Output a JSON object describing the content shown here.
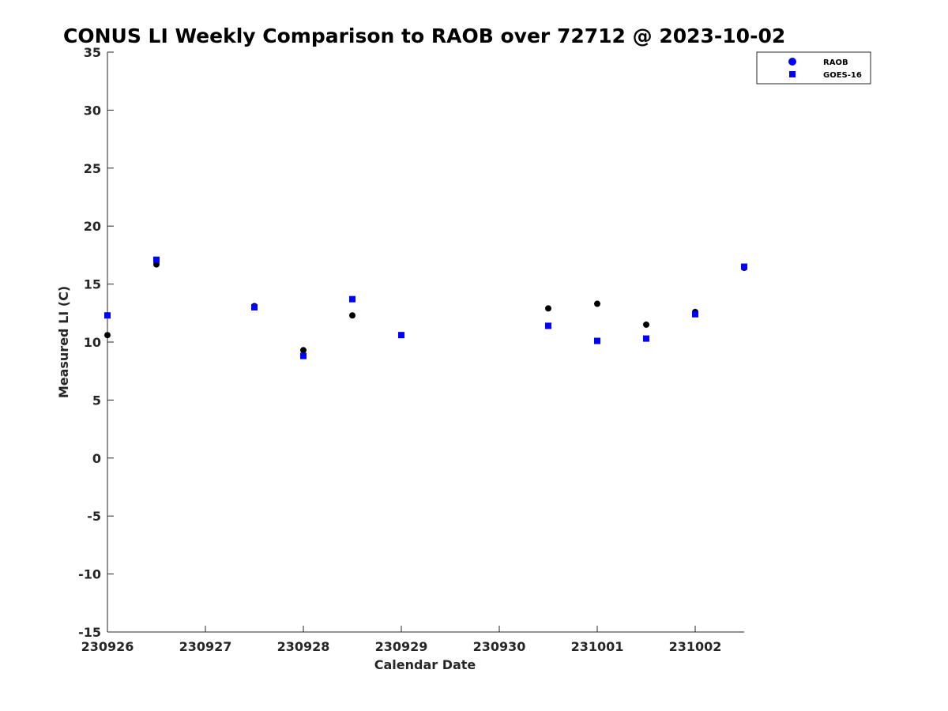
{
  "chart_data": {
    "type": "scatter",
    "title": "CONUS LI Weekly Comparison to RAOB over 72712 @ 2023-10-02",
    "xlabel": "Calendar Date",
    "ylabel": "Measured LI (C)",
    "ylim": [
      -15,
      35
    ],
    "yticks": [
      "35",
      "30",
      "25",
      "20",
      "15",
      "10",
      "5",
      "0",
      "-5",
      "-10",
      "-15"
    ],
    "xlim": [
      "2023-09-26",
      "2023-10-02T12:00"
    ],
    "xticks": [
      "230926",
      "230927",
      "230928",
      "230929",
      "230930",
      "231001",
      "231002"
    ],
    "grid": false,
    "legend_position": "top-right",
    "series": [
      {
        "name": "RAOB",
        "marker": "circle",
        "color": "#000000",
        "legend_color": "#0000ff",
        "points": [
          {
            "x": "2023-09-26T00:00",
            "y": 10.6
          },
          {
            "x": "2023-09-26T12:00",
            "y": 16.7
          },
          {
            "x": "2023-09-27T12:00",
            "y": 13.1
          },
          {
            "x": "2023-09-28T00:00",
            "y": 9.3
          },
          {
            "x": "2023-09-28T12:00",
            "y": 12.3
          },
          {
            "x": "2023-09-29T00:00",
            "y": 10.6
          },
          {
            "x": "2023-09-30T12:00",
            "y": 12.9
          },
          {
            "x": "2023-10-01T00:00",
            "y": 13.3
          },
          {
            "x": "2023-10-01T12:00",
            "y": 11.5
          },
          {
            "x": "2023-10-02T00:00",
            "y": 12.6
          },
          {
            "x": "2023-10-02T12:00",
            "y": 16.4
          }
        ]
      },
      {
        "name": "GOES-16",
        "marker": "square",
        "color": "#0000ff",
        "legend_color": "#0000ff",
        "points": [
          {
            "x": "2023-09-26T00:00",
            "y": 12.3
          },
          {
            "x": "2023-09-26T12:00",
            "y": 17.1
          },
          {
            "x": "2023-09-27T12:00",
            "y": 13.0
          },
          {
            "x": "2023-09-28T00:00",
            "y": 8.8
          },
          {
            "x": "2023-09-28T12:00",
            "y": 13.7
          },
          {
            "x": "2023-09-29T00:00",
            "y": 10.6
          },
          {
            "x": "2023-09-30T12:00",
            "y": 11.4
          },
          {
            "x": "2023-10-01T00:00",
            "y": 10.1
          },
          {
            "x": "2023-10-01T12:00",
            "y": 10.3
          },
          {
            "x": "2023-10-02T00:00",
            "y": 12.4
          },
          {
            "x": "2023-10-02T12:00",
            "y": 16.5
          }
        ]
      }
    ]
  }
}
